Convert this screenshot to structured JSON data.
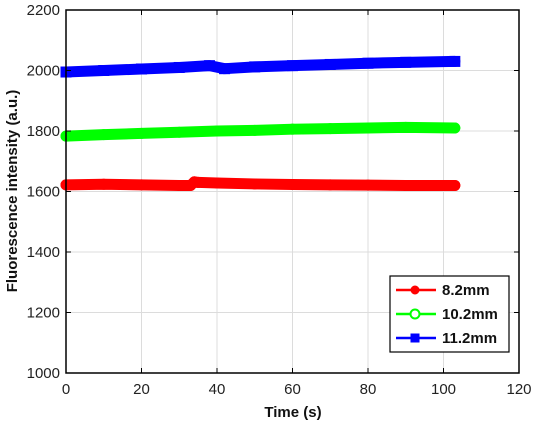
{
  "chart_data": {
    "type": "line",
    "xlabel": "Time (s)",
    "ylabel": "Fluorescence intensity (a.u.)",
    "xlim": [
      0,
      120
    ],
    "ylim": [
      1000,
      2200
    ],
    "xticks": [
      "0",
      "20",
      "40",
      "60",
      "80",
      "100",
      "120"
    ],
    "yticks": [
      "1000",
      "1200",
      "1400",
      "1600",
      "1800",
      "2000",
      "2200"
    ],
    "grid": true,
    "legend_position": "lower-right",
    "series": [
      {
        "name": "8.2mm",
        "color": "#ff0000",
        "marker": "circle",
        "x": [
          0,
          10,
          20,
          30,
          33,
          34,
          35,
          40,
          50,
          60,
          70,
          80,
          90,
          103
        ],
        "y": [
          1622,
          1624,
          1622,
          1620,
          1620,
          1632,
          1630,
          1628,
          1625,
          1623,
          1622,
          1621,
          1620,
          1620
        ]
      },
      {
        "name": "10.2mm",
        "color": "#00ff00",
        "marker": "circle",
        "x": [
          0,
          10,
          20,
          30,
          40,
          50,
          60,
          70,
          80,
          90,
          103
        ],
        "y": [
          1783,
          1788,
          1792,
          1796,
          1800,
          1802,
          1806,
          1808,
          1810,
          1812,
          1810
        ]
      },
      {
        "name": "11.2mm",
        "color": "#0000ff",
        "marker": "square",
        "x": [
          0,
          10,
          20,
          30,
          38,
          42,
          50,
          60,
          70,
          80,
          90,
          103
        ],
        "y": [
          1995,
          2000,
          2005,
          2010,
          2016,
          2006,
          2012,
          2016,
          2020,
          2024,
          2027,
          2030
        ]
      }
    ]
  }
}
